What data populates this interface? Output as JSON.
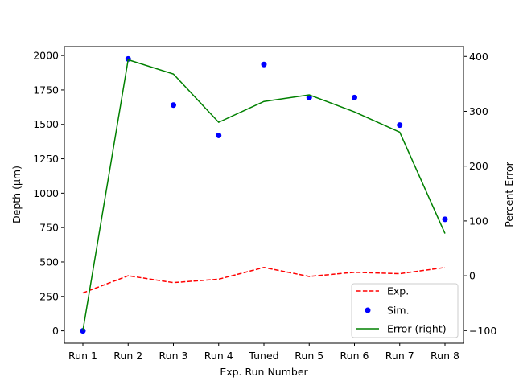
{
  "chart_data": {
    "type": "line",
    "xlabel": "Exp. Run Number",
    "ylabel_left": "Depth  (μm)",
    "ylabel_right": "Percent Error",
    "categories": [
      "Run 1",
      "Run 2",
      "Run 3",
      "Run 4",
      "Tuned",
      "Run 5",
      "Run 6",
      "Run 7",
      "Run 8"
    ],
    "ylim_left": [
      -90,
      2065
    ],
    "ylim_right": [
      -123,
      418
    ],
    "yticks_left": [
      0,
      250,
      500,
      750,
      1000,
      1250,
      1500,
      1750,
      2000
    ],
    "yticks_right": [
      -100,
      0,
      100,
      200,
      300,
      400
    ],
    "grid": false,
    "legend_position": "lower-right",
    "series": [
      {
        "name": "Exp.",
        "axis": "left",
        "style": "dashed-line",
        "color": "#ff0000",
        "values": [
          275,
          400,
          350,
          375,
          460,
          395,
          425,
          415,
          460
        ]
      },
      {
        "name": "Sim.",
        "axis": "left",
        "style": "scatter",
        "color": "#0000ff",
        "values": [
          0,
          1975,
          1640,
          1420,
          1935,
          1695,
          1695,
          1495,
          810
        ]
      },
      {
        "name": "Error (right)",
        "axis": "right",
        "style": "solid-line",
        "color": "#008000",
        "values": [
          -100,
          394,
          368,
          280,
          318,
          330,
          299,
          262,
          77
        ]
      }
    ]
  }
}
